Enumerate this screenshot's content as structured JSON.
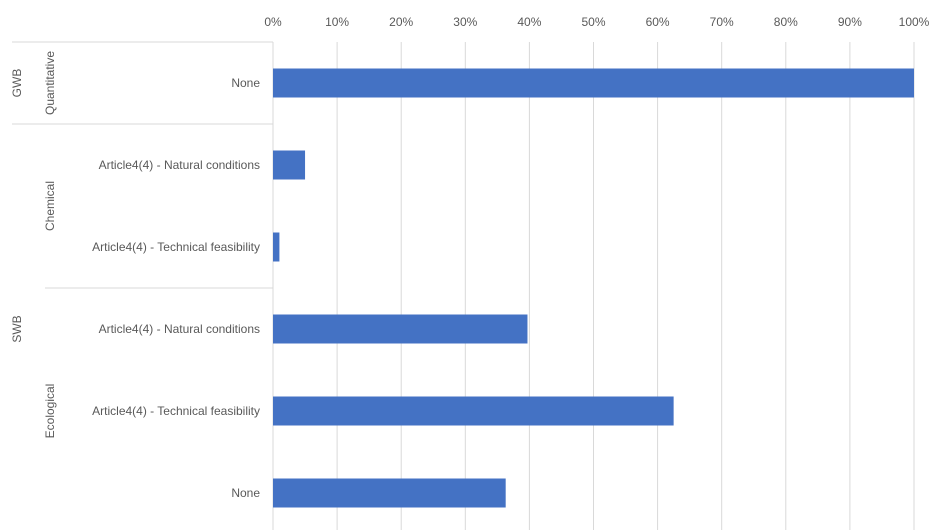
{
  "chart_data": {
    "type": "bar",
    "orientation": "horizontal",
    "xlim": [
      0,
      100
    ],
    "x_ticks": [
      "0%",
      "10%",
      "20%",
      "30%",
      "40%",
      "50%",
      "60%",
      "70%",
      "80%",
      "90%",
      "100%"
    ],
    "x_tick_values": [
      0,
      10,
      20,
      30,
      40,
      50,
      60,
      70,
      80,
      90,
      100
    ],
    "axis_position": "top",
    "grid": true,
    "bar_color": "#4472C4",
    "categories": [
      "None",
      "Article4(4) - Natural conditions",
      "Article4(4) - Technical feasibility",
      "Article4(4) - Natural conditions",
      "Article4(4) - Technical feasibility",
      "None"
    ],
    "values": [
      100,
      5,
      1,
      39.7,
      62.5,
      36.3
    ],
    "subgroups": [
      {
        "label": "Quantitative",
        "start": 0,
        "count": 1
      },
      {
        "label": "Chemical",
        "start": 1,
        "count": 2
      },
      {
        "label": "Ecological",
        "start": 3,
        "count": 3
      }
    ],
    "groups": [
      {
        "label": "GWB",
        "start": 0,
        "count": 1
      },
      {
        "label": "SWB",
        "start": 1,
        "count": 5
      }
    ]
  }
}
